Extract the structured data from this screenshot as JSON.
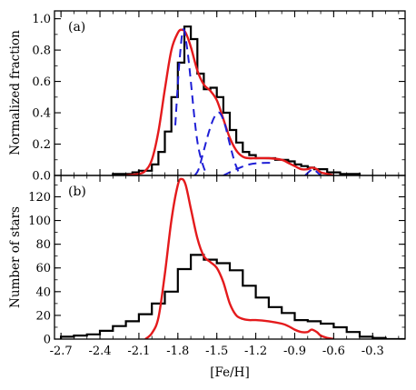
{
  "chart_data": [
    {
      "panel_label": "(a)",
      "type": "line",
      "ylabel": "Normalized fraction",
      "xlim": [
        -2.75,
        -0.05
      ],
      "ylim": [
        0,
        1.05
      ],
      "yticks": [
        0.0,
        0.2,
        0.4,
        0.6,
        0.8,
        1.0
      ],
      "ytick_labels": [
        "0.0",
        "0.2",
        "0.4",
        "0.6",
        "0.8",
        "1.0"
      ],
      "series": [
        {
          "kind": "histogram",
          "color": "#000000",
          "bin_width": 0.05,
          "bin_edges_start": -2.3,
          "values": [
            0.01,
            0.01,
            0.01,
            0.02,
            0.03,
            0.03,
            0.07,
            0.15,
            0.28,
            0.5,
            0.72,
            0.95,
            0.87,
            0.65,
            0.55,
            0.56,
            0.5,
            0.4,
            0.29,
            0.21,
            0.15,
            0.13,
            0.11,
            0.11,
            0.11,
            0.1,
            0.1,
            0.09,
            0.07,
            0.06,
            0.05,
            0.04,
            0.04,
            0.02,
            0.02,
            0.01,
            0.01,
            0.01
          ]
        },
        {
          "kind": "smooth",
          "color": "#e41a1c",
          "x": [
            -2.2,
            -2.1,
            -2.05,
            -2.0,
            -1.95,
            -1.9,
            -1.85,
            -1.8,
            -1.77,
            -1.74,
            -1.7,
            -1.65,
            -1.6,
            -1.55,
            -1.5,
            -1.45,
            -1.4,
            -1.35,
            -1.3,
            -1.25,
            -1.2,
            -1.1,
            -1.0,
            -0.95,
            -0.9,
            -0.85,
            -0.8,
            -0.77,
            -0.73,
            -0.7,
            -0.65,
            -0.6
          ],
          "y": [
            0.0,
            0.01,
            0.03,
            0.1,
            0.28,
            0.55,
            0.8,
            0.91,
            0.93,
            0.91,
            0.82,
            0.67,
            0.58,
            0.54,
            0.48,
            0.36,
            0.24,
            0.16,
            0.12,
            0.11,
            0.11,
            0.11,
            0.1,
            0.08,
            0.06,
            0.04,
            0.04,
            0.05,
            0.04,
            0.02,
            0.01,
            0.0
          ]
        },
        {
          "kind": "component",
          "color": "#1f1fd6",
          "x": [
            -1.82,
            -1.79,
            -1.76,
            -1.73,
            -1.7,
            -1.67,
            -1.64,
            -1.6,
            -1.57
          ],
          "y": [
            0.32,
            0.7,
            0.93,
            0.82,
            0.6,
            0.35,
            0.17,
            0.05,
            0.0
          ]
        },
        {
          "kind": "component",
          "color": "#1f1fd6",
          "x": [
            -1.67,
            -1.64,
            -1.6,
            -1.56,
            -1.52,
            -1.48,
            -1.44,
            -1.4,
            -1.36,
            -1.32
          ],
          "y": [
            0.0,
            0.04,
            0.16,
            0.28,
            0.37,
            0.4,
            0.33,
            0.2,
            0.08,
            0.0
          ]
        },
        {
          "kind": "component",
          "color": "#1f1fd6",
          "x": [
            -1.45,
            -1.35,
            -1.25,
            -1.15,
            -1.05
          ],
          "y": [
            0.0,
            0.04,
            0.07,
            0.08,
            0.08
          ]
        },
        {
          "kind": "component",
          "color": "#1f1fd6",
          "x": [
            -0.82,
            -0.78,
            -0.76,
            -0.74,
            -0.7
          ],
          "y": [
            0.0,
            0.03,
            0.04,
            0.03,
            0.0
          ]
        }
      ]
    },
    {
      "panel_label": "(b)",
      "type": "line",
      "xlabel": "[Fe/H]",
      "ylabel": "Number of stars",
      "xlim": [
        -2.75,
        -0.05
      ],
      "ylim": [
        0,
        138
      ],
      "yticks": [
        0,
        20,
        40,
        60,
        80,
        100,
        120
      ],
      "ytick_labels": [
        "0",
        "20",
        "40",
        "60",
        "80",
        "100",
        "120"
      ],
      "xticks": [
        -2.7,
        -2.4,
        -2.1,
        -1.8,
        -1.5,
        -1.2,
        -0.9,
        -0.6,
        -0.3
      ],
      "xtick_labels": [
        "-2.7",
        "-2.4",
        "-2.1",
        "-1.8",
        "-1.5",
        "-1.2",
        "-0.9",
        "-0.6",
        "-0.3"
      ],
      "series": [
        {
          "kind": "histogram",
          "color": "#000000",
          "bin_width": 0.1,
          "bin_edges_start": -2.7,
          "values": [
            2,
            3,
            4,
            7,
            11,
            15,
            21,
            30,
            40,
            59,
            71,
            67,
            64,
            58,
            45,
            35,
            27,
            22,
            16,
            15,
            13,
            10,
            6,
            2,
            1,
            0,
            0
          ]
        },
        {
          "kind": "smooth",
          "color": "#e41a1c",
          "x": [
            -2.05,
            -2.0,
            -1.95,
            -1.9,
            -1.85,
            -1.8,
            -1.77,
            -1.74,
            -1.7,
            -1.65,
            -1.6,
            -1.55,
            -1.5,
            -1.45,
            -1.4,
            -1.35,
            -1.3,
            -1.25,
            -1.2,
            -1.1,
            -1.0,
            -0.95,
            -0.9,
            -0.85,
            -0.8,
            -0.77,
            -0.73,
            -0.7,
            -0.65,
            -0.6
          ],
          "y": [
            0,
            5,
            18,
            55,
            100,
            130,
            135,
            130,
            110,
            85,
            70,
            65,
            60,
            48,
            30,
            20,
            17,
            16,
            16,
            15,
            13,
            11,
            8,
            6,
            6,
            8,
            6,
            3,
            1,
            0
          ]
        }
      ]
    }
  ]
}
